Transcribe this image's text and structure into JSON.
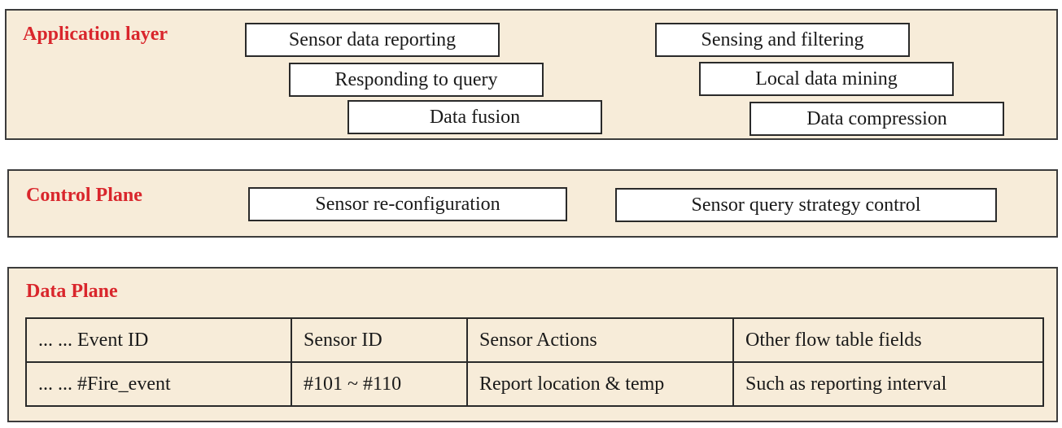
{
  "colors": {
    "layer_background": "#f7ecd9",
    "title_color": "#d9262c",
    "box_background": "#ffffff",
    "border": "#2a2a2a"
  },
  "application_layer": {
    "title": "Application layer",
    "functions": [
      "Sensor data reporting",
      "Responding to query",
      "Data fusion",
      "Sensing and filtering",
      "Local data mining",
      "Data compression"
    ]
  },
  "control_plane": {
    "title": "Control Plane",
    "functions": [
      "Sensor re-configuration",
      "Sensor query strategy control"
    ]
  },
  "data_plane": {
    "title": "Data Plane",
    "flow_table": {
      "headers": [
        "... ... Event ID",
        "Sensor ID",
        "Sensor Actions",
        "Other flow table fields"
      ],
      "rows": [
        [
          "... ... #Fire_event",
          "#101 ~ #110",
          "Report location & temp",
          "Such as reporting interval"
        ]
      ]
    }
  }
}
